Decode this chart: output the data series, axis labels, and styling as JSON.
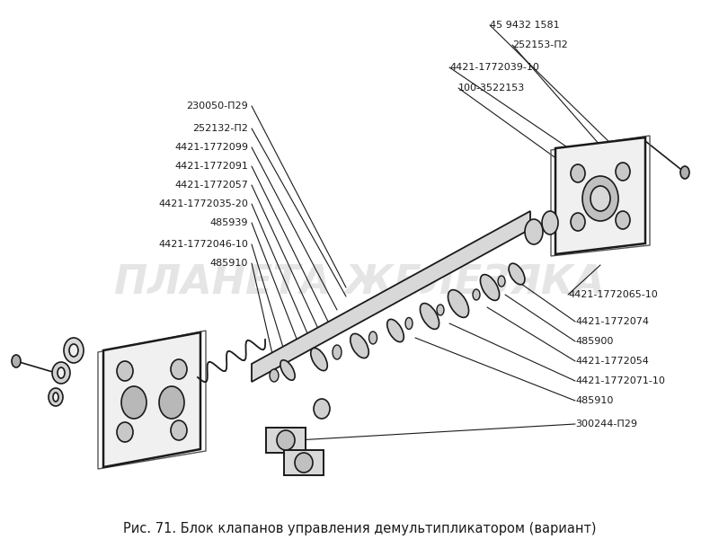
{
  "title": "Рис. 71. Блок клапанов управления демультипликатором (вариант)",
  "title_fontsize": 10.5,
  "bg_color": "#ffffff",
  "watermark_text": "ПЛАНЕТА ЖЕЛЕЗЯКА",
  "watermark_color": "#d0d0d0",
  "watermark_fontsize": 32,
  "font_color": "#1a1a1a",
  "label_fontsize": 8.0,
  "line_color": "#1a1a1a",
  "fig_width": 8.0,
  "fig_height": 6.1,
  "left_labels": [
    "230050-П29",
    "252132-П2",
    "4421-1772099",
    "4421-1772091",
    "4421-1772057",
    "4421-1772035-20",
    "485939",
    "4421-1772046-10",
    "485910"
  ],
  "top_labels": [
    "45 9432 1581",
    "252153-П2",
    "4421-1772039-10",
    "100-3522153"
  ],
  "right_side_labels": [
    "4421-1772065-10",
    "4421-1772074",
    "485900",
    "4421-1772054",
    "4421-1772071-10",
    "485910",
    "300244-П29"
  ]
}
